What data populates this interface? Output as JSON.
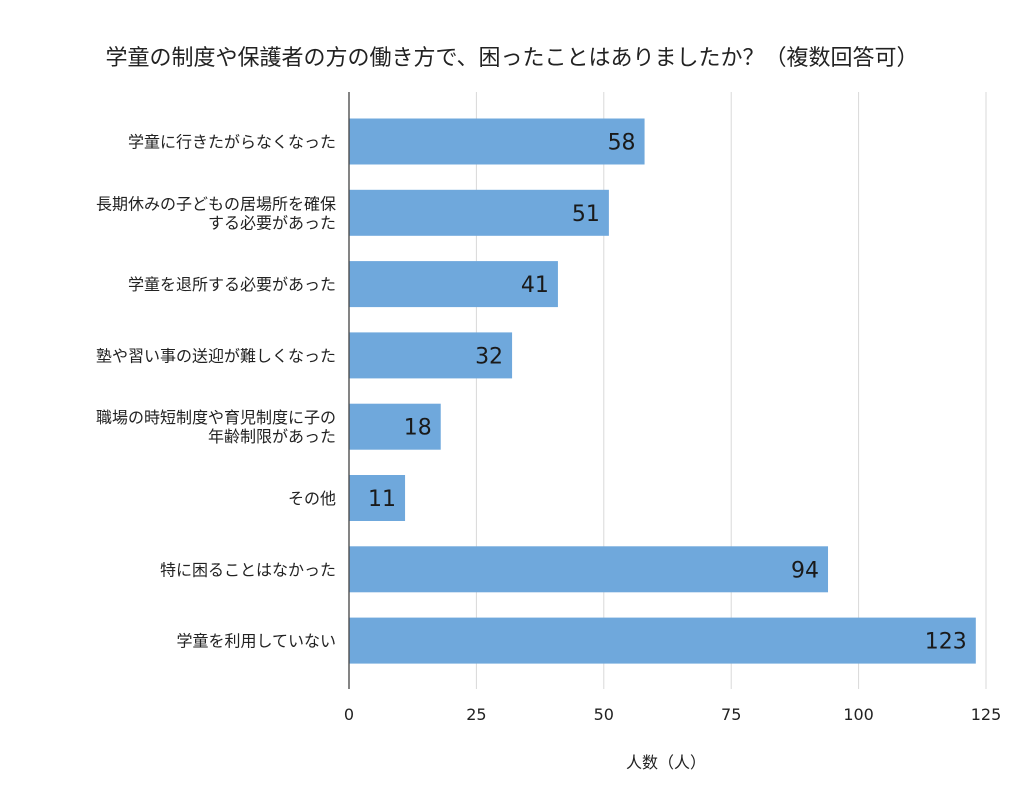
{
  "chart_data": {
    "type": "bar",
    "orientation": "horizontal",
    "title": "学童の制度や保護者の方の働き方で、困ったことはありましたか？（複数回答可）",
    "xlabel": "人数（人）",
    "ylabel": "",
    "xlim": [
      0,
      125
    ],
    "xticks": [
      0,
      25,
      50,
      75,
      100,
      125
    ],
    "grid": "vertical",
    "legend": "none",
    "bar_color": "#6fa8dc",
    "categories": [
      [
        "学童に行きたがらなくなった"
      ],
      [
        "長期休みの子どもの居場所を確保",
        "する必要があった"
      ],
      [
        "学童を退所する必要があった"
      ],
      [
        "塾や習い事の送迎が難しくなった"
      ],
      [
        "職場の時短制度や育児制度に子の",
        "年齢制限があった"
      ],
      [
        "その他"
      ],
      [
        "特に困ることはなかった"
      ],
      [
        "学童を利用していない"
      ]
    ],
    "values": [
      58,
      51,
      41,
      32,
      18,
      11,
      94,
      123
    ]
  }
}
